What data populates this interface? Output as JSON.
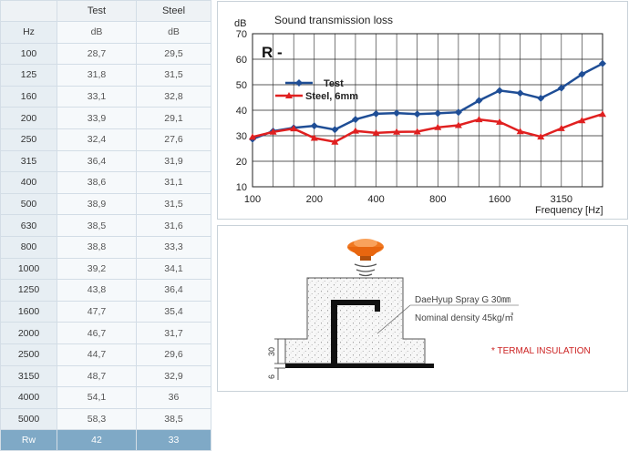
{
  "table": {
    "columns": [
      "",
      "Test",
      "Steel"
    ],
    "units": [
      "Hz",
      "dB",
      "dB"
    ],
    "rows": [
      [
        "100",
        "28,7",
        "29,5"
      ],
      [
        "125",
        "31,8",
        "31,5"
      ],
      [
        "160",
        "33,1",
        "32,8"
      ],
      [
        "200",
        "33,9",
        "29,1"
      ],
      [
        "250",
        "32,4",
        "27,6"
      ],
      [
        "315",
        "36,4",
        "31,9"
      ],
      [
        "400",
        "38,6",
        "31,1"
      ],
      [
        "500",
        "38,9",
        "31,5"
      ],
      [
        "630",
        "38,5",
        "31,6"
      ],
      [
        "800",
        "38,8",
        "33,3"
      ],
      [
        "1000",
        "39,2",
        "34,1"
      ],
      [
        "1250",
        "43,8",
        "36,4"
      ],
      [
        "1600",
        "47,7",
        "35,4"
      ],
      [
        "2000",
        "46,7",
        "31,7"
      ],
      [
        "2500",
        "44,7",
        "29,6"
      ],
      [
        "3150",
        "48,7",
        "32,9"
      ],
      [
        "4000",
        "54,1",
        "36"
      ],
      [
        "5000",
        "58,3",
        "38,5"
      ]
    ],
    "footer": [
      "Rw",
      "42",
      "33"
    ]
  },
  "chart_data": {
    "type": "line",
    "title": "Sound transmission loss",
    "ylabel": "dB",
    "xlabel": "Frequency [Hz]",
    "annotation": "R -",
    "x": [
      100,
      125,
      160,
      200,
      250,
      315,
      400,
      500,
      630,
      800,
      1000,
      1250,
      1600,
      2000,
      2500,
      3150,
      4000,
      5000
    ],
    "xticks": [
      "100",
      "200",
      "400",
      "800",
      "1600",
      "3150"
    ],
    "ylim": [
      10,
      70
    ],
    "yticks": [
      10,
      20,
      30,
      40,
      50,
      60,
      70
    ],
    "grid": true,
    "legend_position": "left",
    "series": [
      {
        "name": "Test",
        "color": "#1f4e96",
        "marker": "diamond",
        "values": [
          28.7,
          31.8,
          33.1,
          33.9,
          32.4,
          36.4,
          38.6,
          38.9,
          38.5,
          38.8,
          39.2,
          43.8,
          47.7,
          46.7,
          44.7,
          48.7,
          54.1,
          58.3
        ]
      },
      {
        "name": "Steel, 6mm",
        "color": "#e02020",
        "marker": "triangle",
        "values": [
          29.5,
          31.5,
          32.8,
          29.1,
          27.6,
          31.9,
          31.1,
          31.5,
          31.6,
          33.3,
          34.1,
          36.4,
          35.4,
          31.7,
          29.6,
          32.9,
          36,
          38.5
        ]
      }
    ]
  },
  "diagram": {
    "spray_label": "DaeHyup Spray G 30㎜",
    "density_label": "Nominal density 45kg/㎥",
    "insulation_label": "* TERMAL INSULATION",
    "dim_30": "30",
    "dim_6": "6",
    "colors": {
      "nozzle": "#f07820",
      "insulation_text": "#cc2222",
      "steel": "#111111"
    }
  }
}
